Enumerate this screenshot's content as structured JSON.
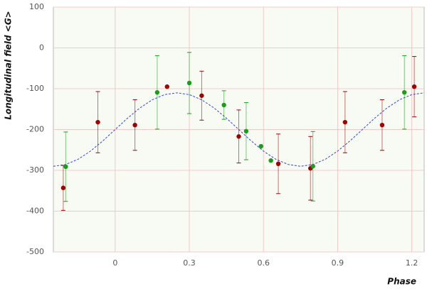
{
  "chart_data": {
    "type": "scatter",
    "x_label": "Phase",
    "y_label": "Longitudinal field <G>",
    "xlim": [
      -0.25,
      1.25
    ],
    "ylim": [
      -500,
      100
    ],
    "xticks": [
      0,
      0.3,
      0.6,
      0.9,
      1.2
    ],
    "yticks": [
      100,
      0,
      -100,
      -200,
      -300,
      -400,
      -500
    ],
    "grid": true,
    "series": [
      {
        "color": "#a00000",
        "x": [
          -0.21,
          -0.07,
          0.08,
          0.21,
          0.35,
          0.5,
          0.66,
          0.79,
          0.93,
          1.08,
          1.21
        ],
        "values": [
          -343,
          -182,
          -189,
          -95,
          -117,
          -217,
          -284,
          -295,
          -182,
          -189,
          -95
        ],
        "errors": [
          55,
          75,
          62,
          null,
          60,
          65,
          73,
          78,
          75,
          62,
          74
        ]
      },
      {
        "color": "#1a9e1a",
        "x": [
          -0.2,
          0.17,
          0.3,
          0.44,
          0.53,
          0.59,
          0.63,
          0.8,
          1.17
        ],
        "values": [
          -291,
          -109,
          -86,
          -140,
          -204,
          -241,
          -276,
          -290,
          -109
        ],
        "errors": [
          85,
          90,
          75,
          35,
          70,
          null,
          null,
          85,
          90
        ]
      }
    ],
    "fit": {
      "color": "#3344dd",
      "x": [
        -0.25,
        -0.2,
        -0.15,
        -0.1,
        -0.05,
        0,
        0.05,
        0.1,
        0.15,
        0.2,
        0.25,
        0.3,
        0.35,
        0.4,
        0.45,
        0.5,
        0.55,
        0.6,
        0.65,
        0.7,
        0.75,
        0.8,
        0.85,
        0.9,
        0.95,
        1.0,
        1.05,
        1.1,
        1.15,
        1.2,
        1.25
      ],
      "values": [
        -290,
        -285.6,
        -272.8,
        -252.9,
        -227.8,
        -200,
        -172.2,
        -147.1,
        -127.2,
        -114.4,
        -110,
        -114.4,
        -127.2,
        -147.1,
        -172.2,
        -200,
        -227.8,
        -252.9,
        -272.8,
        -285.6,
        -290,
        -285.6,
        -272.8,
        -252.9,
        -227.8,
        -200,
        -172.2,
        -147.1,
        -127.2,
        -114.4,
        -110
      ]
    }
  }
}
